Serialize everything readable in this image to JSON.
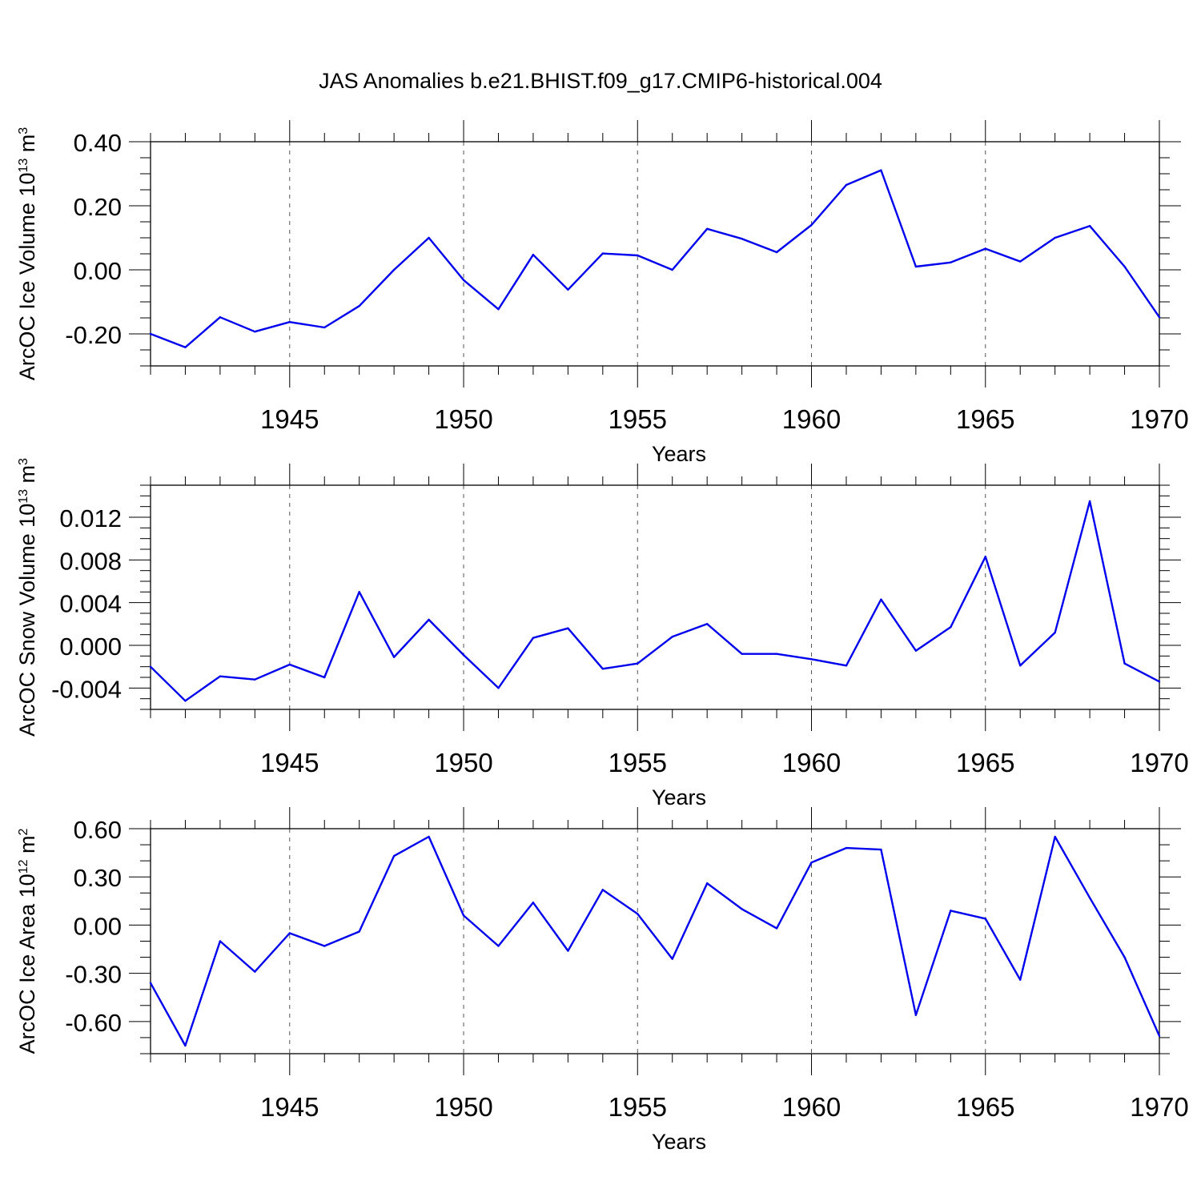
{
  "title": "JAS Anomalies b.e21.BHIST.f09_g17.CMIP6-historical.004",
  "line_color": "#0000ee",
  "chart_data": [
    {
      "type": "line",
      "ylabel": "ArcOC Ice Volume 10",
      "ylabel_exponent": "13",
      "ylabel_unit": " m",
      "ylabel_unit_exponent": "3",
      "xlabel": "Years",
      "xlim": [
        1941,
        1970
      ],
      "ylim": [
        -0.3,
        0.4
      ],
      "xticks": [
        1945,
        1950,
        1955,
        1960,
        1965,
        1970
      ],
      "xtick_labels": [
        "1945",
        "1950",
        "1955",
        "1960",
        "1965",
        "1970"
      ],
      "yticks": [
        -0.2,
        0.0,
        0.2,
        0.4
      ],
      "ytick_labels": [
        "-0.20",
        "0.00",
        "0.20",
        "0.40"
      ],
      "ytick_minor_step": 0.05,
      "grid": "vertical dashed at major x ticks",
      "x": [
        1941,
        1942,
        1943,
        1944,
        1945,
        1946,
        1947,
        1948,
        1949,
        1950,
        1951,
        1952,
        1953,
        1954,
        1955,
        1956,
        1957,
        1958,
        1959,
        1960,
        1961,
        1962,
        1963,
        1964,
        1965,
        1966,
        1967,
        1968,
        1969,
        1970
      ],
      "series": [
        {
          "values": [
            -0.2,
            -0.242,
            -0.148,
            -0.193,
            -0.163,
            -0.18,
            -0.113,
            0.0,
            0.1,
            -0.032,
            -0.123,
            0.047,
            -0.062,
            0.051,
            0.045,
            0.0,
            0.128,
            0.097,
            0.055,
            0.14,
            0.265,
            0.311,
            0.01,
            0.023,
            0.066,
            0.026,
            0.1,
            0.137,
            0.01,
            -0.148
          ]
        }
      ]
    },
    {
      "type": "line",
      "ylabel": "ArcOC Snow Volume 10",
      "ylabel_exponent": "13",
      "ylabel_unit": " m",
      "ylabel_unit_exponent": "3",
      "xlabel": "Years",
      "xlim": [
        1941,
        1970
      ],
      "ylim": [
        -0.006,
        0.015
      ],
      "xticks": [
        1945,
        1950,
        1955,
        1960,
        1965,
        1970
      ],
      "xtick_labels": [
        "1945",
        "1950",
        "1955",
        "1960",
        "1965",
        "1970"
      ],
      "yticks": [
        -0.004,
        0.0,
        0.004,
        0.008,
        0.012
      ],
      "ytick_labels": [
        "-0.004",
        "0.000",
        "0.004",
        "0.008",
        "0.012"
      ],
      "ytick_minor_step": 0.001,
      "grid": "vertical dashed at major x ticks",
      "x": [
        1941,
        1942,
        1943,
        1944,
        1945,
        1946,
        1947,
        1948,
        1949,
        1950,
        1951,
        1952,
        1953,
        1954,
        1955,
        1956,
        1957,
        1958,
        1959,
        1960,
        1961,
        1962,
        1963,
        1964,
        1965,
        1966,
        1967,
        1968,
        1969,
        1970
      ],
      "series": [
        {
          "values": [
            -0.002,
            -0.0052,
            -0.0029,
            -0.0032,
            -0.0018,
            -0.003,
            0.005,
            -0.0011,
            0.0024,
            -0.0009,
            -0.004,
            0.0007,
            0.0016,
            -0.0022,
            -0.0017,
            0.0008,
            0.002,
            -0.0008,
            -0.0008,
            -0.0013,
            -0.0019,
            0.0043,
            -0.0005,
            0.0017,
            0.0083,
            -0.0019,
            0.0012,
            0.0135,
            -0.0017,
            -0.0034
          ]
        }
      ]
    },
    {
      "type": "line",
      "ylabel": "ArcOC Ice Area 10",
      "ylabel_exponent": "12",
      "ylabel_unit": " m",
      "ylabel_unit_exponent": "2",
      "xlabel": "Years",
      "xlim": [
        1941,
        1970
      ],
      "ylim": [
        -0.8,
        0.6
      ],
      "xticks": [
        1945,
        1950,
        1955,
        1960,
        1965,
        1970
      ],
      "xtick_labels": [
        "1945",
        "1950",
        "1955",
        "1960",
        "1965",
        "1970"
      ],
      "yticks": [
        -0.6,
        -0.3,
        0.0,
        0.3,
        0.6
      ],
      "ytick_labels": [
        "-0.60",
        "-0.30",
        "0.00",
        "0.30",
        "0.60"
      ],
      "ytick_minor_step": 0.1,
      "grid": "vertical dashed at major x ticks",
      "x": [
        1941,
        1942,
        1943,
        1944,
        1945,
        1946,
        1947,
        1948,
        1949,
        1950,
        1951,
        1952,
        1953,
        1954,
        1955,
        1956,
        1957,
        1958,
        1959,
        1960,
        1961,
        1962,
        1963,
        1964,
        1965,
        1966,
        1967,
        1968,
        1969,
        1970
      ],
      "series": [
        {
          "values": [
            -0.36,
            -0.75,
            -0.1,
            -0.29,
            -0.05,
            -0.13,
            -0.04,
            0.43,
            0.55,
            0.06,
            -0.13,
            0.14,
            -0.16,
            0.22,
            0.07,
            -0.21,
            0.26,
            0.1,
            -0.02,
            0.39,
            0.48,
            0.47,
            -0.56,
            0.09,
            0.04,
            -0.34,
            0.55,
            0.17,
            -0.2,
            -0.69
          ]
        }
      ]
    }
  ]
}
